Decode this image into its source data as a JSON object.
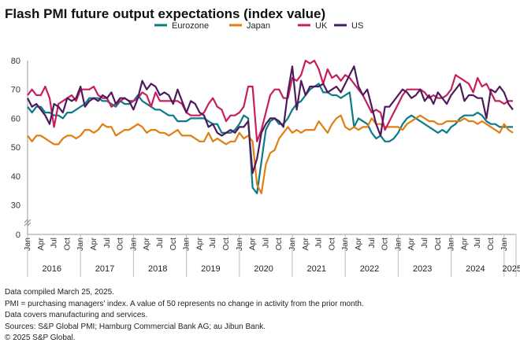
{
  "chart_data": {
    "type": "line",
    "title": "Flash PMI future output expectations (index value)",
    "xlabel": "",
    "ylabel": "",
    "x_start": "2016-01",
    "x_end": "2025-03",
    "frequency": "monthly",
    "ylim": [
      0,
      80
    ],
    "y_axis_break": [
      0,
      30
    ],
    "yticks": [
      0,
      30,
      40,
      50,
      60,
      70,
      80
    ],
    "month_ticks": [
      "Jan",
      "Apr",
      "Jul",
      "Oct"
    ],
    "year_labels": [
      "2016",
      "2017",
      "2018",
      "2019",
      "2020",
      "2021",
      "2022",
      "2023",
      "2024",
      "2025"
    ],
    "grid": false,
    "legend_position": "top",
    "series": [
      {
        "name": "Eurozone",
        "color": "#0b7a8a",
        "values": [
          64,
          62,
          64,
          64,
          62,
          62,
          61,
          61,
          60,
          62,
          62,
          63,
          64,
          65,
          67,
          67,
          67,
          66,
          66,
          65,
          64,
          66,
          65,
          65,
          66,
          68,
          66,
          65,
          64,
          63,
          63,
          62,
          61,
          61,
          59,
          59,
          59,
          60,
          60,
          60,
          60,
          59,
          58,
          58,
          55,
          55,
          55,
          56,
          58,
          61,
          60,
          36,
          34,
          45,
          56,
          59,
          60,
          58,
          58,
          60,
          63,
          65,
          66,
          68,
          70,
          71,
          72,
          69,
          69,
          68,
          68,
          67,
          68,
          69,
          57,
          60,
          59,
          58,
          55,
          53,
          54,
          52,
          52,
          53,
          55,
          58,
          60,
          61,
          60,
          59,
          58,
          57,
          56,
          55,
          56,
          55,
          57,
          58,
          60,
          61,
          61,
          61,
          62,
          61,
          59,
          58,
          58,
          57,
          57,
          57,
          57
        ]
      },
      {
        "name": "Japan",
        "color": "#e07f12",
        "values": [
          54,
          52,
          54,
          54,
          53,
          52,
          51,
          51,
          53,
          54,
          54,
          53,
          54,
          56,
          56,
          55,
          56,
          58,
          57,
          57,
          54,
          55,
          56,
          56,
          57,
          58,
          57,
          55,
          56,
          56,
          55,
          55,
          54,
          55,
          56,
          54,
          54,
          54,
          53,
          52,
          52,
          55,
          52,
          53,
          52,
          51,
          52,
          52,
          55,
          53,
          54,
          52,
          37,
          34,
          44,
          48,
          49,
          53,
          55,
          57,
          55,
          56,
          55,
          56,
          56,
          56,
          59,
          57,
          55,
          58,
          60,
          61,
          57,
          56,
          57,
          56,
          57,
          57,
          60,
          58,
          58,
          57,
          57,
          57,
          57,
          56,
          58,
          59,
          60,
          61,
          60,
          59,
          59,
          58,
          58,
          59,
          59,
          59,
          59,
          60,
          59,
          59,
          58,
          59,
          58,
          57,
          56,
          55,
          58,
          56,
          55
        ]
      },
      {
        "name": "UK",
        "color": "#c81f5c",
        "values": [
          68,
          70,
          68,
          68,
          71,
          67,
          57,
          65,
          66,
          67,
          68,
          66,
          70,
          70,
          70,
          71,
          68,
          67,
          67,
          64,
          65,
          66,
          67,
          66,
          66,
          67,
          69,
          68,
          64,
          69,
          66,
          66,
          66,
          66,
          66,
          65,
          62,
          61,
          61,
          61,
          62,
          65,
          67,
          64,
          63,
          59,
          61,
          61,
          62,
          64,
          71,
          71,
          52,
          56,
          62,
          68,
          70,
          70,
          67,
          67,
          74,
          73,
          75,
          80,
          79,
          80,
          77,
          72,
          77,
          74,
          75,
          73,
          75,
          74,
          72,
          70,
          68,
          65,
          62,
          63,
          62,
          56,
          59,
          62,
          65,
          68,
          70,
          70,
          70,
          70,
          69,
          67,
          68,
          67,
          67,
          68,
          70,
          75,
          74,
          73,
          72,
          69,
          74,
          71,
          72,
          69,
          66,
          66,
          65,
          66,
          66
        ]
      },
      {
        "name": "US",
        "color": "#4e1a5c",
        "values": [
          67,
          64,
          65,
          63,
          61,
          58,
          65,
          64,
          62,
          67,
          66,
          67,
          71,
          64,
          66,
          67,
          66,
          68,
          67,
          69,
          65,
          67,
          67,
          66,
          63,
          67,
          73,
          70,
          72,
          71,
          68,
          69,
          68,
          65,
          70,
          66,
          62,
          66,
          65,
          62,
          61,
          57,
          58,
          55,
          54,
          55,
          56,
          55,
          57,
          57,
          59,
          41,
          46,
          55,
          58,
          60,
          60,
          59,
          57,
          69,
          78,
          63,
          73,
          68,
          71,
          71,
          71,
          72,
          69,
          70,
          71,
          69,
          72,
          75,
          78,
          71,
          68,
          70,
          64,
          58,
          54,
          64,
          64,
          66,
          68,
          70,
          69,
          67,
          68,
          70,
          66,
          68,
          65,
          69,
          67,
          65,
          68,
          70,
          72,
          66,
          68,
          68,
          67,
          67,
          60,
          70,
          69,
          71,
          69,
          65,
          63
        ]
      }
    ]
  },
  "notes": [
    "Data compiled March 25, 2025.",
    "PMI = purchasing managers' index. A value of 50 represents no change in activity from the prior month.",
    "Data covers manufacturing and services.",
    "Sources: S&P Global PMI; Hamburg Commercial Bank AG; au Jibun Bank.",
    "© 2025 S&P Global."
  ]
}
